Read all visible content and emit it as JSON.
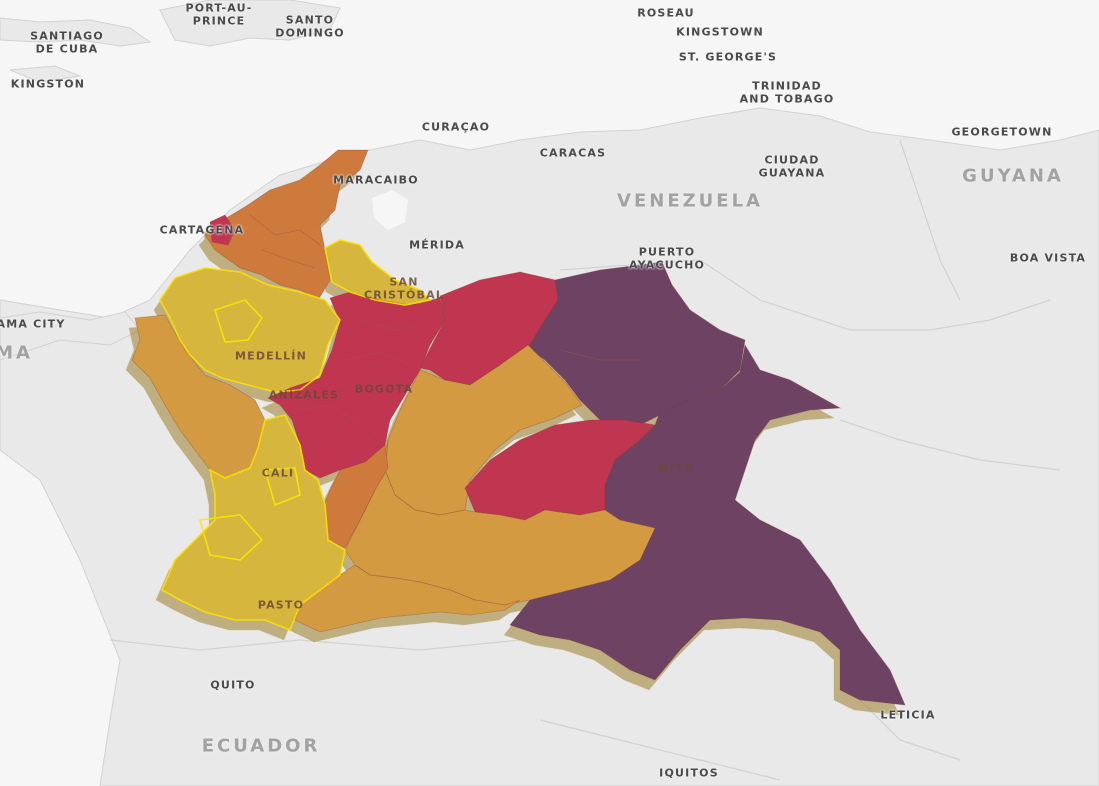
{
  "colors": {
    "ocean": "#f6f6f6",
    "land": "#e9e9e9",
    "border": "#d2d2d2",
    "yellow": "#d6b63d",
    "yellow_edge": "#ffe800",
    "light_orange": "#d39a42",
    "orange": "#cf7a3c",
    "crimson": "#c03550",
    "purple": "#6e4262",
    "extrusion": "#8a6a2a"
  },
  "labels": {
    "port_au_prince": "PORT-AU-\nPRINCE",
    "santo_domingo": "SANTO\nDOMINGO",
    "santiago_de_cuba": "SANTIAGO\nDE CUBA",
    "kingston_jm": "KINGSTON",
    "roseau": "ROSEAU",
    "kingstown": "KINGSTOWN",
    "st_georges": "ST. GEORGE'S",
    "trinidad_and_tobago": "TRINIDAD\nAND TOBAGO",
    "curacao": "CURAÇAO",
    "caracas": "CARACAS",
    "ciudad_guayana": "CIUDAD\nGUAYANA",
    "georgetown": "GEORGETOWN",
    "guyana": "GUYANA",
    "venezuela": "VENEZUELA",
    "maracaibo": "MARACAIBO",
    "merida": "MÉRIDA",
    "cartagena": "CARTAGENA",
    "san_cristobal": "SAN\nCRISTÓBAL",
    "puerto_ayacucho": "PUERTO\nAYACUCHO",
    "boa_vista": "BOA VISTA",
    "panama_city": "AMA CITY",
    "panama": "MA",
    "medellin": "MEDELLÍN",
    "bogota": "BOGOTA",
    "manizales": "ANIZALES",
    "cali": "CALI",
    "mitu": "MITÚ",
    "pasto": "PASTO",
    "quito": "QUITO",
    "ecuador": "ECUADOR",
    "leticia": "LETICIA",
    "iquitos": "IQUITOS"
  },
  "regions": [
    {
      "name": "La Guajira / Cesar / Magdalena",
      "color_key": "orange"
    },
    {
      "name": "Atlántico",
      "color_key": "crimson"
    },
    {
      "name": "Norte de Santander",
      "color_key": "yellow"
    },
    {
      "name": "Antioquia / Córdoba / Sucre",
      "color_key": "yellow"
    },
    {
      "name": "Chocó / Valle del Cauca",
      "color_key": "light_orange"
    },
    {
      "name": "Santander / Boyacá / Cundinamarca",
      "color_key": "crimson"
    },
    {
      "name": "Arauca / Casanare",
      "color_key": "crimson"
    },
    {
      "name": "Vichada",
      "color_key": "purple"
    },
    {
      "name": "Meta",
      "color_key": "light_orange"
    },
    {
      "name": "Guaviare",
      "color_key": "crimson"
    },
    {
      "name": "Guainía / Vaupés / Amazonas",
      "color_key": "purple"
    },
    {
      "name": "Caquetá",
      "color_key": "light_orange"
    },
    {
      "name": "Huila",
      "color_key": "orange"
    },
    {
      "name": "Cauca / Nariño",
      "color_key": "yellow"
    },
    {
      "name": "Putumayo",
      "color_key": "light_orange"
    }
  ]
}
